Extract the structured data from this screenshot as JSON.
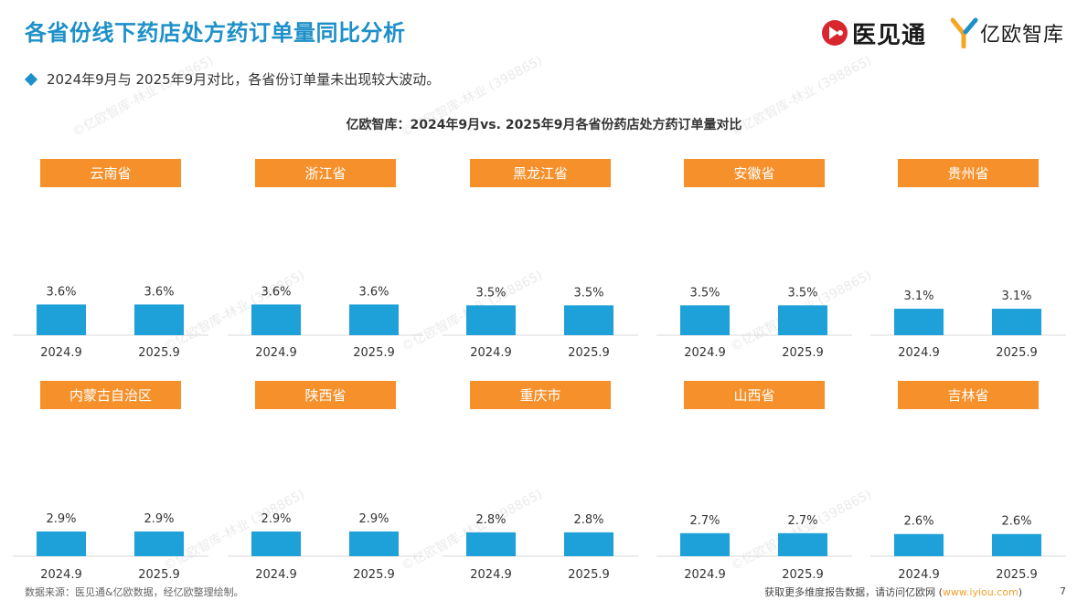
{
  "header": {
    "title": "各省份线下药店处方药订单量同比分析",
    "logo_yjt_text": "医见通",
    "logo_yiou_text": "亿欧智库"
  },
  "subtitle": "2024年9月与 2025年9月对比，各省份订单量未出现较大波动。",
  "chart_title": "亿欧智库：2024年9月vs. 2025年9月各省份药店处方药订单量对比",
  "watermark": "©亿欧智库-林业 (398865)",
  "footer": {
    "source": "数据来源：医见通&亿欧数据，经亿欧整理绘制。",
    "more_prefix": "获取更多维度报告数据，请访问亿欧网 (",
    "more_link": "www.iyiou.com",
    "more_suffix": ")",
    "page_number": "7"
  },
  "colors": {
    "accent": "#1e90c8",
    "bar": "#1ea0d8",
    "label_bg": "#f5902a"
  },
  "chart_data": [
    {
      "type": "bar",
      "title": "云南省",
      "categories": [
        "2024.9",
        "2025.9"
      ],
      "values": [
        3.6,
        3.6
      ],
      "value_labels": [
        "3.6%",
        "3.6%"
      ]
    },
    {
      "type": "bar",
      "title": "浙江省",
      "categories": [
        "2024.9",
        "2025.9"
      ],
      "values": [
        3.6,
        3.6
      ],
      "value_labels": [
        "3.6%",
        "3.6%"
      ]
    },
    {
      "type": "bar",
      "title": "黑龙江省",
      "categories": [
        "2024.9",
        "2025.9"
      ],
      "values": [
        3.5,
        3.5
      ],
      "value_labels": [
        "3.5%",
        "3.5%"
      ]
    },
    {
      "type": "bar",
      "title": "安徽省",
      "categories": [
        "2024.9",
        "2025.9"
      ],
      "values": [
        3.5,
        3.5
      ],
      "value_labels": [
        "3.5%",
        "3.5%"
      ]
    },
    {
      "type": "bar",
      "title": "贵州省",
      "categories": [
        "2024.9",
        "2025.9"
      ],
      "values": [
        3.1,
        3.1
      ],
      "value_labels": [
        "3.1%",
        "3.1%"
      ]
    },
    {
      "type": "bar",
      "title": "内蒙古自治区",
      "categories": [
        "2024.9",
        "2025.9"
      ],
      "values": [
        2.9,
        2.9
      ],
      "value_labels": [
        "2.9%",
        "2.9%"
      ]
    },
    {
      "type": "bar",
      "title": "陕西省",
      "categories": [
        "2024.9",
        "2025.9"
      ],
      "values": [
        2.9,
        2.9
      ],
      "value_labels": [
        "2.9%",
        "2.9%"
      ]
    },
    {
      "type": "bar",
      "title": "重庆市",
      "categories": [
        "2024.9",
        "2025.9"
      ],
      "values": [
        2.8,
        2.8
      ],
      "value_labels": [
        "2.8%",
        "2.8%"
      ]
    },
    {
      "type": "bar",
      "title": "山西省",
      "categories": [
        "2024.9",
        "2025.9"
      ],
      "values": [
        2.7,
        2.7
      ],
      "value_labels": [
        "2.7%",
        "2.7%"
      ]
    },
    {
      "type": "bar",
      "title": "吉林省",
      "categories": [
        "2024.9",
        "2025.9"
      ],
      "values": [
        2.6,
        2.6
      ],
      "value_labels": [
        "2.6%",
        "2.6%"
      ]
    }
  ]
}
